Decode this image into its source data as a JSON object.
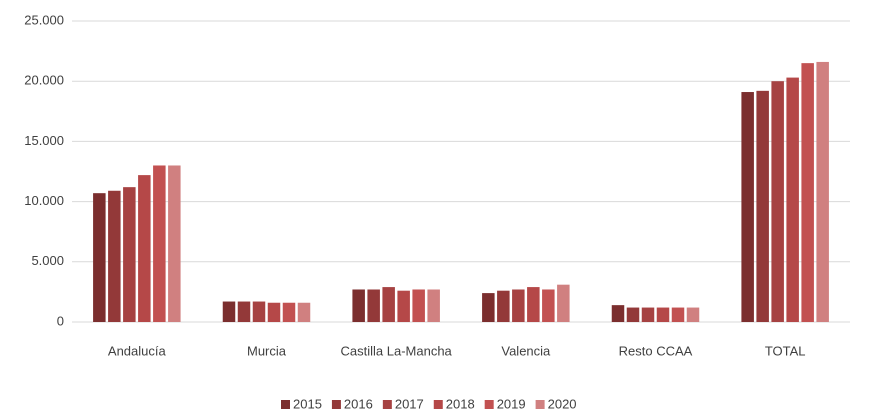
{
  "chart_data": {
    "type": "bar",
    "categories": [
      "Andalucía",
      "Murcia",
      "Castilla La-Mancha",
      "Valencia",
      "Resto CCAA",
      "TOTAL"
    ],
    "series": [
      {
        "name": "2015",
        "color": "#7b2e2e",
        "values": [
          10700,
          1700,
          2700,
          2400,
          1400,
          19100
        ]
      },
      {
        "name": "2016",
        "color": "#933939",
        "values": [
          10900,
          1700,
          2700,
          2600,
          1200,
          19200
        ]
      },
      {
        "name": "2017",
        "color": "#a64242",
        "values": [
          11200,
          1700,
          2900,
          2700,
          1200,
          20000
        ]
      },
      {
        "name": "2018",
        "color": "#b54848",
        "values": [
          12200,
          1600,
          2600,
          2900,
          1200,
          20300
        ]
      },
      {
        "name": "2019",
        "color": "#c25151",
        "values": [
          13000,
          1600,
          2700,
          2700,
          1200,
          21500
        ]
      },
      {
        "name": "2020",
        "color": "#d08080",
        "values": [
          13000,
          1600,
          2700,
          3100,
          1200,
          21600
        ]
      }
    ],
    "ylim": [
      0,
      25000
    ],
    "yticks": [
      0,
      {
        "value": 5000,
        "label": "5.000"
      },
      {
        "value": 10000,
        "label": "10.000"
      },
      {
        "value": 15000,
        "label": "15.000"
      },
      {
        "value": 20000,
        "label": "20.000"
      },
      {
        "value": 25000,
        "label": "25.000"
      }
    ],
    "grid": true,
    "legend": "bottom"
  }
}
